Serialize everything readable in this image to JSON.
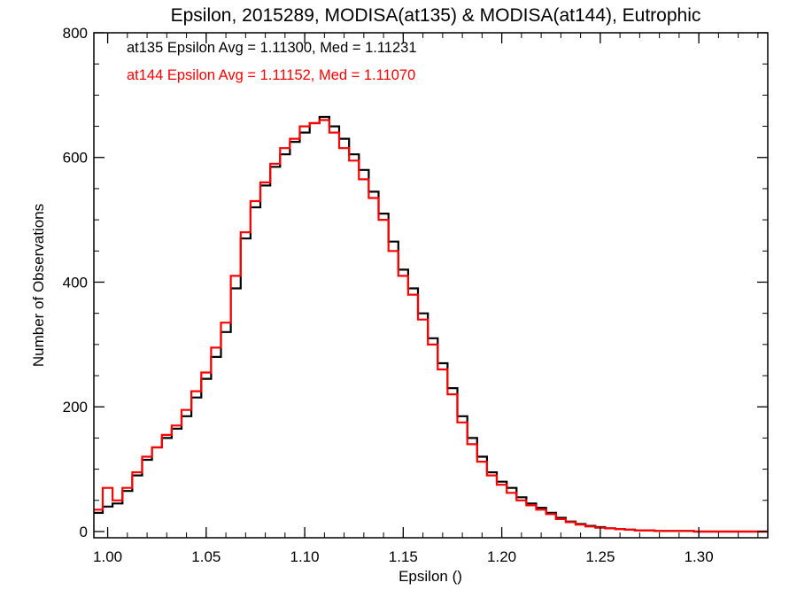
{
  "chart_data": {
    "type": "line",
    "title": "Epsilon, 2015289, MODISA(at135) & MODISA(at144), Eutrophic",
    "xlabel": "Epsilon ()",
    "ylabel": "Number of Observations",
    "xlim": [
      0.993,
      1.335
    ],
    "ylim": [
      -10,
      800
    ],
    "x_ticks": [
      1.0,
      1.05,
      1.1,
      1.15,
      1.2,
      1.25,
      1.3
    ],
    "x_tick_labels": [
      "1.00",
      "1.05",
      "1.10",
      "1.15",
      "1.20",
      "1.25",
      "1.30"
    ],
    "y_ticks": [
      0,
      200,
      400,
      600,
      800
    ],
    "y_tick_labels": [
      "0",
      "200",
      "400",
      "600",
      "800"
    ],
    "grid": false,
    "step": "histogram",
    "annotations": [
      {
        "text": "at135 Epsilon Avg = 1.11300, Med = 1.11231",
        "color": "#000000"
      },
      {
        "text": "at144 Epsilon Avg = 1.11152, Med = 1.11070",
        "color": "#ff0000"
      }
    ],
    "series": [
      {
        "color": "#000000",
        "x": [
          0.995,
          1.0,
          1.005,
          1.01,
          1.015,
          1.02,
          1.025,
          1.03,
          1.035,
          1.04,
          1.045,
          1.05,
          1.055,
          1.06,
          1.065,
          1.07,
          1.075,
          1.08,
          1.085,
          1.09,
          1.095,
          1.1,
          1.105,
          1.11,
          1.115,
          1.12,
          1.125,
          1.13,
          1.135,
          1.14,
          1.145,
          1.15,
          1.155,
          1.16,
          1.165,
          1.17,
          1.175,
          1.18,
          1.185,
          1.19,
          1.195,
          1.2,
          1.205,
          1.21,
          1.215,
          1.22,
          1.225,
          1.23,
          1.235,
          1.24,
          1.245,
          1.25,
          1.255,
          1.26,
          1.265,
          1.27,
          1.275,
          1.28,
          1.285,
          1.29,
          1.295,
          1.3,
          1.305,
          1.31,
          1.315,
          1.32,
          1.325,
          1.33,
          1.335
        ],
        "y": [
          30,
          40,
          45,
          65,
          90,
          115,
          135,
          150,
          165,
          185,
          215,
          245,
          280,
          320,
          390,
          470,
          520,
          555,
          585,
          605,
          625,
          640,
          655,
          665,
          650,
          630,
          605,
          580,
          545,
          510,
          465,
          420,
          390,
          350,
          310,
          270,
          230,
          185,
          150,
          120,
          95,
          80,
          70,
          55,
          45,
          38,
          30,
          22,
          16,
          12,
          9,
          7,
          5,
          4,
          3,
          2,
          2,
          1,
          1,
          1,
          1,
          0,
          0,
          0,
          0,
          0,
          0,
          0,
          0
        ]
      },
      {
        "color": "#ff0000",
        "x": [
          0.995,
          1.0,
          1.005,
          1.01,
          1.015,
          1.02,
          1.025,
          1.03,
          1.035,
          1.04,
          1.045,
          1.05,
          1.055,
          1.06,
          1.065,
          1.07,
          1.075,
          1.08,
          1.085,
          1.09,
          1.095,
          1.1,
          1.105,
          1.11,
          1.115,
          1.12,
          1.125,
          1.13,
          1.135,
          1.14,
          1.145,
          1.15,
          1.155,
          1.16,
          1.165,
          1.17,
          1.175,
          1.18,
          1.185,
          1.19,
          1.195,
          1.2,
          1.205,
          1.21,
          1.215,
          1.22,
          1.225,
          1.23,
          1.235,
          1.24,
          1.245,
          1.25,
          1.255,
          1.26,
          1.265,
          1.27,
          1.275,
          1.28,
          1.285,
          1.29,
          1.295,
          1.3,
          1.305,
          1.31,
          1.315,
          1.32,
          1.325,
          1.33,
          1.335
        ],
        "y": [
          35,
          70,
          50,
          70,
          95,
          120,
          135,
          155,
          170,
          195,
          225,
          255,
          295,
          335,
          410,
          480,
          530,
          560,
          590,
          615,
          630,
          650,
          655,
          660,
          640,
          615,
          595,
          565,
          535,
          500,
          450,
          410,
          380,
          340,
          300,
          260,
          220,
          175,
          140,
          112,
          90,
          75,
          62,
          50,
          42,
          35,
          28,
          20,
          15,
          11,
          8,
          6,
          5,
          4,
          3,
          2,
          2,
          1,
          1,
          1,
          1,
          0,
          0,
          0,
          0,
          0,
          0,
          0,
          0
        ]
      }
    ]
  }
}
